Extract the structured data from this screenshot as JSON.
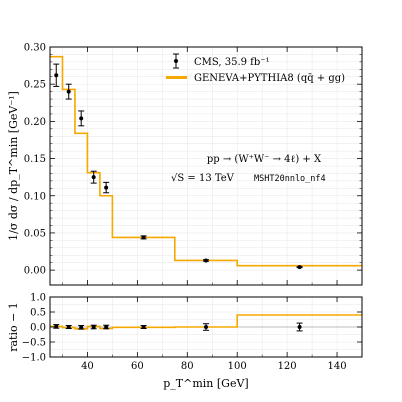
{
  "chart_data": [
    {
      "type": "line",
      "panel": "main",
      "ylabel": "1/σ dσ / dp_T^min [GeV⁻¹]",
      "xlim": [
        25,
        150
      ],
      "ylim": [
        -0.02,
        0.3
      ],
      "yticks": [
        "0.00",
        "0.05",
        "0.10",
        "0.15",
        "0.20",
        "0.25",
        "0.30"
      ],
      "grid": true,
      "legend_placement": "top-right",
      "annotation_process": "pp → (W⁺W⁻ → 4ℓ) + X",
      "annotation_energy": "√S = 13 TeV",
      "annotation_pdf": "MSHT20nnlo_nf4",
      "series": [
        {
          "name": "CMS, 35.9 fb⁻¹",
          "style": "points-with-errorbars",
          "color": "#000000",
          "points": [
            {
              "x": 27.5,
              "y": 0.262,
              "err": 0.015
            },
            {
              "x": 32.5,
              "y": 0.24,
              "err": 0.01
            },
            {
              "x": 37.5,
              "y": 0.204,
              "err": 0.01
            },
            {
              "x": 42.5,
              "y": 0.125,
              "err": 0.008
            },
            {
              "x": 47.5,
              "y": 0.111,
              "err": 0.007
            },
            {
              "x": 62.5,
              "y": 0.044,
              "err": 0.002
            },
            {
              "x": 87.5,
              "y": 0.013,
              "err": 0.001
            },
            {
              "x": 125,
              "y": 0.004,
              "err": 0.0006
            }
          ]
        },
        {
          "name": "GENEVA+PYTHIA8 (qq̄ + gg)",
          "style": "step",
          "color": "#f5a800",
          "bins": [
            {
              "lo": 25,
              "hi": 30,
              "y": 0.287
            },
            {
              "lo": 30,
              "hi": 35,
              "y": 0.243
            },
            {
              "lo": 35,
              "hi": 40,
              "y": 0.184
            },
            {
              "lo": 40,
              "hi": 45,
              "y": 0.131
            },
            {
              "lo": 45,
              "hi": 50,
              "y": 0.1
            },
            {
              "lo": 50,
              "hi": 75,
              "y": 0.044
            },
            {
              "lo": 75,
              "hi": 100,
              "y": 0.013
            },
            {
              "lo": 100,
              "hi": 150,
              "y": 0.006
            }
          ]
        }
      ]
    },
    {
      "type": "line",
      "panel": "ratio",
      "ylabel": "ratio − 1",
      "xlabel": "p_T^min [GeV]",
      "xlim": [
        25,
        150
      ],
      "ylim": [
        -1.0,
        1.0
      ],
      "xticks": [
        "40",
        "60",
        "80",
        "100",
        "120",
        "140"
      ],
      "yticks": [
        "−1.0",
        "−0.5",
        "0.0",
        "0.5",
        "1.0"
      ],
      "series": [
        {
          "name": "CMS, 35.9 fb⁻¹",
          "style": "points-with-errorbars",
          "points": [
            {
              "x": 27.5,
              "y": 0.02,
              "err": 0.06
            },
            {
              "x": 32.5,
              "y": 0.0,
              "err": 0.05
            },
            {
              "x": 37.5,
              "y": -0.01,
              "err": 0.06
            },
            {
              "x": 42.5,
              "y": 0.0,
              "err": 0.06
            },
            {
              "x": 47.5,
              "y": 0.0,
              "err": 0.06
            },
            {
              "x": 62.5,
              "y": 0.0,
              "err": 0.05
            },
            {
              "x": 87.5,
              "y": 0.0,
              "err": 0.11
            },
            {
              "x": 125,
              "y": 0.0,
              "err": 0.13
            }
          ]
        },
        {
          "name": "GENEVA+PYTHIA8 (qq̄ + gg)",
          "style": "step",
          "bins": [
            {
              "lo": 25,
              "hi": 30,
              "y": 0.02
            },
            {
              "lo": 30,
              "hi": 35,
              "y": -0.02
            },
            {
              "lo": 35,
              "hi": 40,
              "y": -0.06
            },
            {
              "lo": 40,
              "hi": 45,
              "y": 0.02
            },
            {
              "lo": 45,
              "hi": 50,
              "y": -0.05
            },
            {
              "lo": 50,
              "hi": 75,
              "y": -0.01
            },
            {
              "lo": 75,
              "hi": 100,
              "y": 0.0
            },
            {
              "lo": 100,
              "hi": 150,
              "y": 0.4
            }
          ]
        }
      ]
    }
  ]
}
